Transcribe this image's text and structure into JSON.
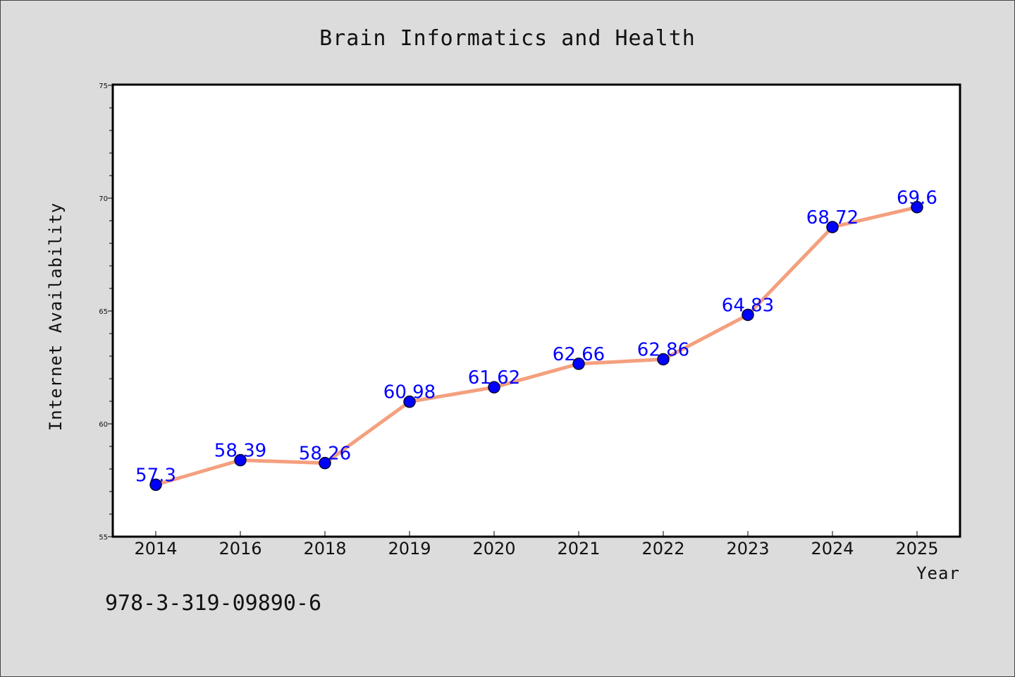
{
  "isbn": "978-3-319-09890-6",
  "chart_data": {
    "type": "line",
    "title": "Brain Informatics and Health",
    "xlabel": "Year",
    "ylabel": "Internet Availability",
    "categories": [
      "2014",
      "2016",
      "2018",
      "2019",
      "2020",
      "2021",
      "2022",
      "2023",
      "2024",
      "2025"
    ],
    "values": [
      57.3,
      58.39,
      58.26,
      60.98,
      61.62,
      62.66,
      62.86,
      64.83,
      68.72,
      69.6
    ],
    "data_labels": [
      "57.3",
      "58.39",
      "58.26",
      "60.98",
      "61.62",
      "62.66",
      "62.86",
      "64.83",
      "68.72",
      "69.6"
    ],
    "ylim": [
      55,
      75
    ],
    "yticks": [
      "55",
      "60",
      "65",
      "70",
      "75"
    ],
    "grid": false,
    "colors": {
      "line": "#f4a07e",
      "marker": "#0000ff",
      "data_label": "#0000ff",
      "background": "#dcdcdc",
      "plot_area": "#ffffff"
    }
  }
}
